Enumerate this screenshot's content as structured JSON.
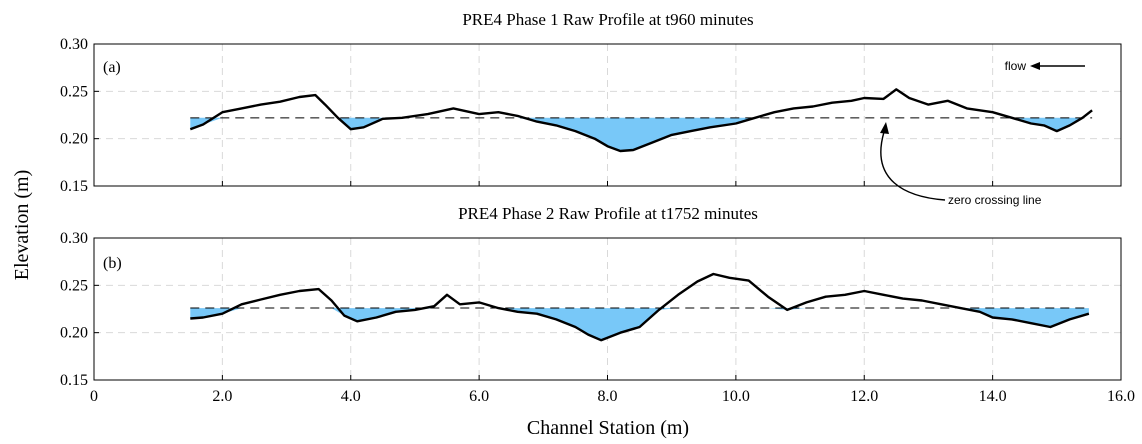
{
  "chart_data": {
    "type": "line",
    "xlabel": "Channel Station (m)",
    "ylabel": "Elevation (m)",
    "xlim": [
      0,
      16.0
    ],
    "x_ticks": [
      "0",
      "2.0",
      "4.0",
      "6.0",
      "8.0",
      "10.0",
      "12.0",
      "14.0",
      "16.0"
    ],
    "grid": true,
    "fill_color": "#78c8f8",
    "panels": [
      {
        "title": "PRE4 Phase 1 Raw Profile at t960 minutes",
        "panel_label": "(a)",
        "ylim": [
          0.15,
          0.3
        ],
        "y_ticks": [
          "0.15",
          "0.20",
          "0.25",
          "0.30"
        ],
        "zero_crossing": 0.222,
        "series": [
          {
            "x": [
              1.5,
              1.7,
              2.0,
              2.3,
              2.6,
              2.9,
              3.2,
              3.45,
              3.6,
              3.8,
              4.0,
              4.2,
              4.5,
              4.8,
              5.2,
              5.6,
              6.0,
              6.3,
              6.6,
              6.9,
              7.2,
              7.5,
              7.8,
              8.0,
              8.2,
              8.4,
              8.7,
              9.0,
              9.3,
              9.6,
              10.0,
              10.3,
              10.6,
              10.9,
              11.2,
              11.5,
              11.8,
              12.0,
              12.3,
              12.5,
              12.7,
              13.0,
              13.3,
              13.6,
              14.0,
              14.3,
              14.6,
              14.8,
              15.0,
              15.2,
              15.4,
              15.55
            ],
            "y": [
              0.21,
              0.215,
              0.228,
              0.232,
              0.236,
              0.239,
              0.244,
              0.246,
              0.236,
              0.222,
              0.21,
              0.212,
              0.221,
              0.222,
              0.226,
              0.232,
              0.226,
              0.228,
              0.224,
              0.218,
              0.214,
              0.208,
              0.2,
              0.192,
              0.187,
              0.188,
              0.196,
              0.204,
              0.208,
              0.212,
              0.216,
              0.222,
              0.228,
              0.232,
              0.234,
              0.238,
              0.24,
              0.243,
              0.242,
              0.252,
              0.243,
              0.236,
              0.24,
              0.232,
              0.228,
              0.222,
              0.216,
              0.214,
              0.208,
              0.214,
              0.222,
              0.23
            ]
          }
        ],
        "annotations": [
          "flow",
          "zero crossing line"
        ]
      },
      {
        "title": "PRE4 Phase 2 Raw Profile at t1752 minutes",
        "panel_label": "(b)",
        "ylim": [
          0.15,
          0.3
        ],
        "y_ticks": [
          "0.15",
          "0.20",
          "0.25",
          "0.30"
        ],
        "zero_crossing": 0.226,
        "series": [
          {
            "x": [
              1.5,
              1.7,
              2.0,
              2.3,
              2.6,
              2.9,
              3.2,
              3.5,
              3.7,
              3.9,
              4.1,
              4.4,
              4.7,
              5.0,
              5.3,
              5.5,
              5.7,
              6.0,
              6.3,
              6.6,
              6.9,
              7.2,
              7.5,
              7.7,
              7.9,
              8.2,
              8.5,
              8.8,
              9.1,
              9.4,
              9.65,
              9.9,
              10.2,
              10.5,
              10.8,
              11.1,
              11.4,
              11.7,
              12.0,
              12.3,
              12.6,
              12.9,
              13.2,
              13.5,
              13.8,
              14.0,
              14.3,
              14.6,
              14.9,
              15.2,
              15.5
            ],
            "y": [
              0.215,
              0.216,
              0.22,
              0.23,
              0.235,
              0.24,
              0.244,
              0.246,
              0.234,
              0.218,
              0.212,
              0.216,
              0.222,
              0.224,
              0.228,
              0.24,
              0.23,
              0.232,
              0.226,
              0.222,
              0.22,
              0.214,
              0.206,
              0.198,
              0.192,
              0.2,
              0.206,
              0.224,
              0.24,
              0.254,
              0.262,
              0.258,
              0.255,
              0.238,
              0.224,
              0.232,
              0.238,
              0.24,
              0.244,
              0.24,
              0.236,
              0.234,
              0.23,
              0.226,
              0.222,
              0.216,
              0.214,
              0.21,
              0.206,
              0.214,
              0.22
            ]
          }
        ],
        "annotations": []
      }
    ]
  }
}
